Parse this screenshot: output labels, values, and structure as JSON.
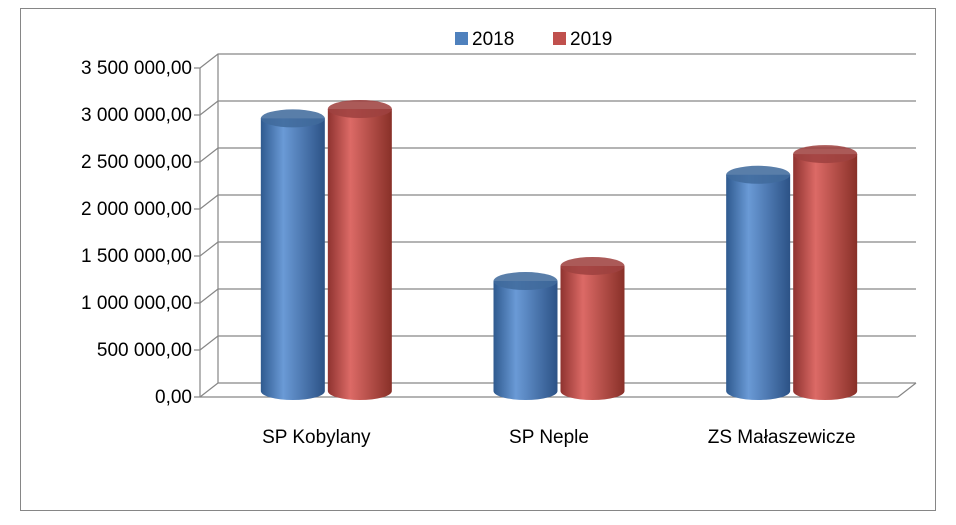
{
  "chart_data": {
    "type": "bar3d",
    "categories": [
      "SP Kobylany",
      "SP Neple",
      "ZS Małaszewicze"
    ],
    "series": [
      {
        "name": "2018",
        "color": "#4f81bd",
        "values": [
          2900000,
          1170000,
          2300000
        ]
      },
      {
        "name": "2019",
        "color": "#c0504d",
        "values": [
          3000000,
          1330000,
          2520000
        ]
      }
    ],
    "ylim": [
      0,
      3500000
    ],
    "yticks": [
      {
        "value": 0,
        "label": "0,00"
      },
      {
        "value": 500000,
        "label": "500 000,00"
      },
      {
        "value": 1000000,
        "label": "1 000 000,00"
      },
      {
        "value": 1500000,
        "label": "1 500 000,00"
      },
      {
        "value": 2000000,
        "label": "2 000 000,00"
      },
      {
        "value": 2500000,
        "label": "2 500 000,00"
      },
      {
        "value": 3000000,
        "label": "3 000 000,00"
      },
      {
        "value": 3500000,
        "label": "3 500 000,00"
      }
    ],
    "grid": true,
    "legend": "top"
  }
}
